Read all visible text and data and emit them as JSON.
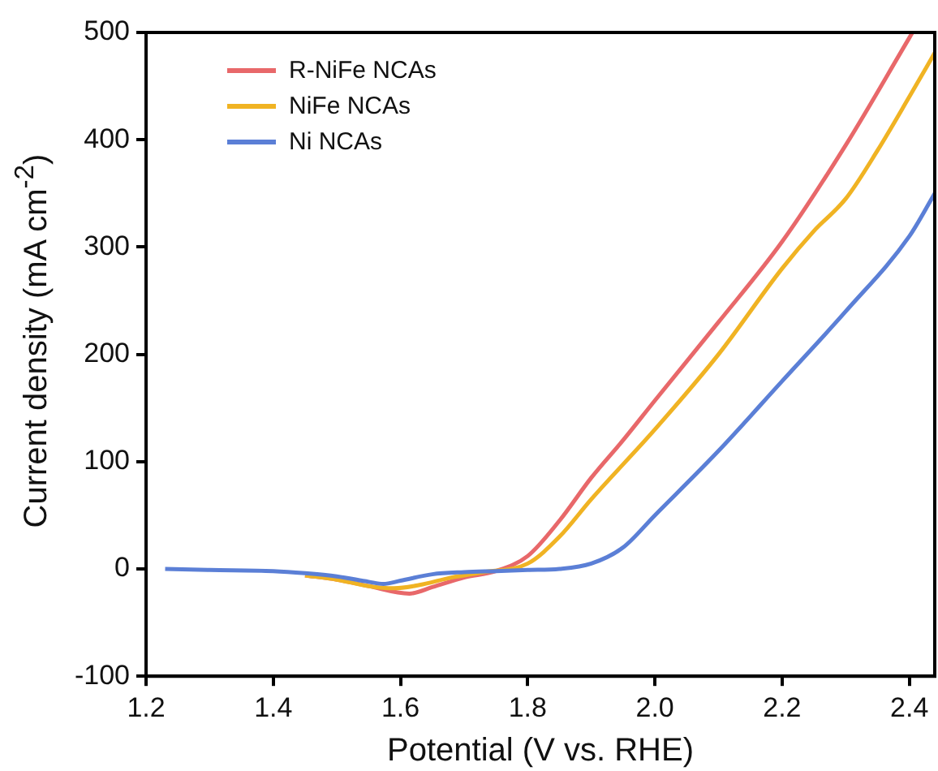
{
  "chart_data": {
    "type": "line",
    "xlabel": "Potential (V vs. RHE)",
    "ylabel": "Current density (mA cm$^{-2}$)",
    "xlim": [
      1.2,
      2.44
    ],
    "ylim": [
      -100,
      500
    ],
    "xticks": [
      {
        "value": 1.2,
        "label": "1.2"
      },
      1.4,
      1.6,
      1.8,
      {
        "value": 2.0,
        "label": "2.0"
      },
      2.2,
      2.4
    ],
    "yticks": [
      -100,
      0,
      100,
      200,
      300,
      400,
      500
    ],
    "grid": false,
    "legend": "top left",
    "marker": "none",
    "line_style": "solid",
    "series": [
      {
        "name": "R-NiFe NCAs",
        "color": "#e8686a",
        "x": [
          1.45,
          1.5,
          1.55,
          1.614,
          1.65,
          1.7,
          1.75,
          1.8,
          1.85,
          1.9,
          1.95,
          2.0,
          2.1,
          2.2,
          2.3,
          2.4,
          2.405
        ],
        "values": [
          -6,
          -10,
          -16,
          -23,
          -17,
          -8,
          -2,
          12,
          45,
          85,
          120,
          157,
          230,
          305,
          395,
          495,
          500
        ]
      },
      {
        "name": "NiFe NCAs",
        "color": "#f0b323",
        "x": [
          1.45,
          1.5,
          1.55,
          1.59,
          1.63,
          1.68,
          1.73,
          1.8,
          1.85,
          1.9,
          2.0,
          2.1,
          2.2,
          2.25,
          2.3,
          2.35,
          2.4,
          2.44
        ],
        "values": [
          -6,
          -10,
          -16,
          -18,
          -15,
          -8,
          -3,
          5,
          30,
          65,
          130,
          200,
          280,
          315,
          345,
          390,
          440,
          481
        ]
      },
      {
        "name": "Ni NCAs",
        "color": "#5b7fd6",
        "x": [
          1.23,
          1.3,
          1.4,
          1.45,
          1.5,
          1.55,
          1.573,
          1.6,
          1.65,
          1.7,
          1.75,
          1.8,
          1.85,
          1.9,
          1.95,
          2.0,
          2.1,
          2.2,
          2.3,
          2.4,
          2.44
        ],
        "values": [
          0,
          -1,
          -2,
          -4,
          -7,
          -12,
          -14,
          -11,
          -5,
          -3,
          -2,
          -1,
          0,
          5,
          20,
          50,
          110,
          175,
          240,
          310,
          350
        ]
      }
    ]
  }
}
